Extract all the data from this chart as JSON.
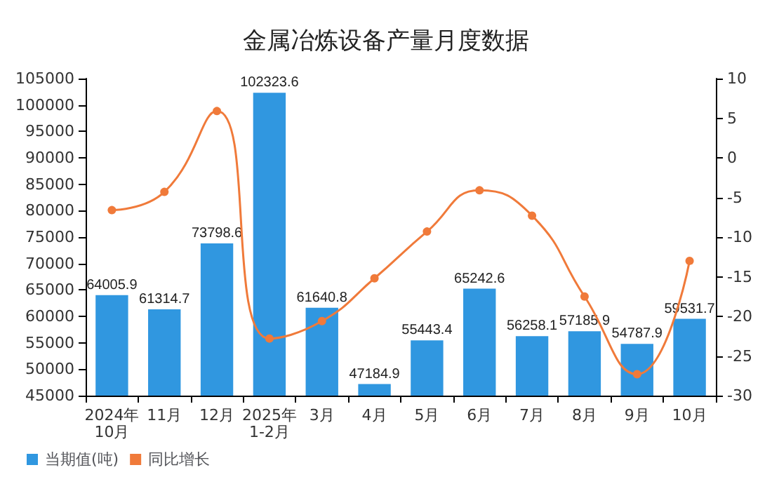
{
  "chart_data": {
    "type": "bar",
    "title": "金属冶炼设备产量月度数据",
    "categories": [
      "2024年\n10月",
      "11月",
      "12月",
      "2025年\n1-2月",
      "3月",
      "4月",
      "5月",
      "6月",
      "7月",
      "8月",
      "9月",
      "10月"
    ],
    "series": [
      {
        "name": "当期值(吨)",
        "color": "#3097e0",
        "values": [
          64005.9,
          61314.7,
          73798.6,
          102323.6,
          61640.8,
          47184.9,
          55443.4,
          65242.6,
          56258.1,
          57185.9,
          54787.9,
          59531.7
        ],
        "value_labels": [
          "64005.9",
          "61314.7",
          "73798.6",
          "102323.6",
          "61640.8",
          "47184.9",
          "55443.4",
          "65242.6",
          "56258.1",
          "57185.9",
          "54787.9",
          "59531.7"
        ]
      },
      {
        "name": "同比增长",
        "type": "line",
        "axis": "y2",
        "color": "#f07a3a",
        "values": [
          -6.6,
          -4.3,
          5.9,
          -22.8,
          -20.6,
          -15.2,
          -9.3,
          -4.1,
          -7.3,
          -17.5,
          -27.3,
          -13.0
        ]
      }
    ],
    "ylim": [
      45000,
      105000
    ],
    "yticks": [
      45000,
      50000,
      55000,
      60000,
      65000,
      70000,
      75000,
      80000,
      85000,
      90000,
      95000,
      100000,
      105000
    ],
    "y2lim": [
      -30,
      10
    ],
    "y2ticks": [
      -30,
      -25,
      -20,
      -15,
      -10,
      -5,
      0,
      5,
      10
    ],
    "legend": "bottom left",
    "grid": false,
    "marker": "circle"
  }
}
